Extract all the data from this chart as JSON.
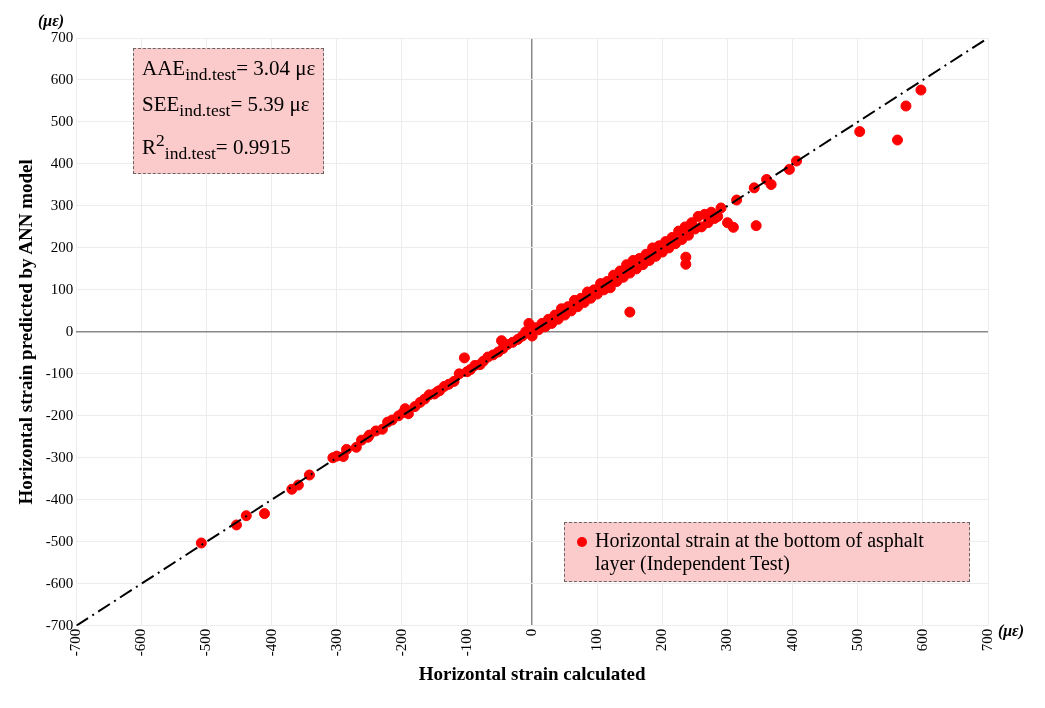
{
  "chart_data": {
    "type": "scatter",
    "xlabel": "Horizontal strain calculated",
    "ylabel": "Horizontal strain predicted by ANN model",
    "xlim": [
      -700,
      700
    ],
    "ylim": [
      -700,
      700
    ],
    "xticks": [
      -700,
      -600,
      -500,
      -400,
      -300,
      -200,
      -100,
      0,
      100,
      200,
      300,
      400,
      500,
      600,
      700
    ],
    "yticks": [
      -700,
      -600,
      -500,
      -400,
      -300,
      -200,
      -100,
      0,
      100,
      200,
      300,
      400,
      500,
      600,
      700
    ],
    "grid": true,
    "legend": "bottom right",
    "annotations": [
      "AAE$_{ind.test}$= 3.04 με",
      "SEE$_{ind.test}$=  5.39 με",
      "R$^{2}$$_{ind.test}$= 0.9915",
      "(με)",
      "(με)"
    ],
    "series": [
      {
        "name": "Horizontal strain at the bottom of asphalt layer (Independent Test)",
        "type": "scatter",
        "color": "#ff0000",
        "marker": "circle",
        "x": [
          -508,
          -454,
          -439,
          -411,
          -369,
          -359,
          -342,
          -306,
          -300,
          -290,
          -285,
          -270,
          -262,
          -252,
          -250,
          -240,
          -230,
          -222,
          -215,
          -205,
          -198,
          -195,
          -190,
          -180,
          -172,
          -165,
          -158,
          -150,
          -145,
          -142,
          -135,
          -128,
          -120,
          -112,
          -104,
          -100,
          -95,
          -88,
          -80,
          -75,
          -68,
          -60,
          -52,
          -47,
          -45,
          -38,
          -30,
          -22,
          -15,
          -10,
          -5,
          0,
          5,
          10,
          15,
          20,
          25,
          30,
          35,
          40,
          45,
          50,
          55,
          60,
          65,
          70,
          75,
          80,
          85,
          90,
          95,
          100,
          105,
          110,
          115,
          120,
          125,
          130,
          135,
          140,
          145,
          150,
          150,
          155,
          160,
          165,
          170,
          175,
          180,
          185,
          190,
          195,
          200,
          205,
          210,
          215,
          220,
          225,
          230,
          235,
          236,
          236,
          240,
          245,
          250,
          255,
          260,
          265,
          270,
          275,
          280,
          285,
          290,
          300,
          309,
          314,
          341,
          344,
          360,
          367,
          395,
          406,
          503,
          561,
          574,
          597
        ],
        "values": [
          -503,
          -460,
          -438,
          -433,
          -375,
          -365,
          -341,
          -300,
          -296,
          -297,
          -280,
          -275,
          -258,
          -251,
          -246,
          -236,
          -232,
          -215,
          -210,
          -200,
          -192,
          -183,
          -195,
          -178,
          -168,
          -160,
          -150,
          -148,
          -142,
          -140,
          -130,
          -125,
          -118,
          -100,
          -62,
          -95,
          -90,
          -80,
          -78,
          -70,
          -60,
          -55,
          -48,
          -21,
          -40,
          -30,
          -25,
          -18,
          -10,
          0,
          20,
          -10,
          10,
          5,
          20,
          12,
          30,
          20,
          40,
          30,
          55,
          40,
          60,
          50,
          75,
          60,
          80,
          70,
          95,
          80,
          100,
          90,
          115,
          100,
          120,
          105,
          135,
          120,
          145,
          130,
          160,
          140,
          47,
          170,
          150,
          175,
          160,
          185,
          170,
          200,
          180,
          205,
          190,
          215,
          200,
          225,
          210,
          240,
          220,
          250,
          161,
          178,
          230,
          260,
          245,
          275,
          250,
          280,
          260,
          285,
          270,
          275,
          295,
          260,
          249,
          314,
          343,
          253,
          363,
          351,
          387,
          407,
          477,
          457,
          538,
          576
        ]
      },
      {
        "type": "line",
        "color": "#000000",
        "line_style": "dashed",
        "marker": "none",
        "x": [
          -700,
          700
        ],
        "values": [
          -700,
          700
        ]
      }
    ]
  }
}
